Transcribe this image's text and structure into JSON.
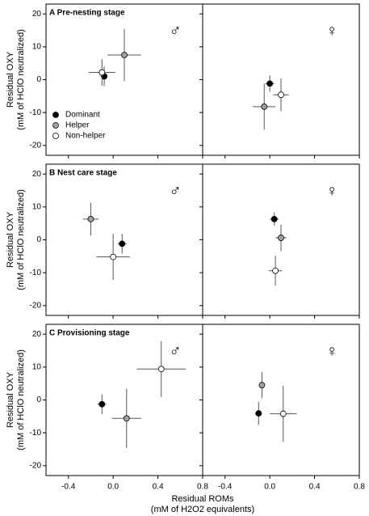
{
  "chart_data": [
    {
      "type": "scatter",
      "title": "A Pre-nesting stage",
      "annotation": "♂",
      "ylabel": [
        "Residual OXY",
        "(mM of HClO neutralized)"
      ],
      "xlim": [
        -0.6,
        0.8
      ],
      "ylim": [
        -23,
        23
      ],
      "xticks": [
        -0.4,
        {
          "value": 0,
          "label": "0.0"
        },
        0.4,
        0.8
      ],
      "yticks": [
        -20,
        -10,
        0,
        10,
        20
      ],
      "series": [
        {
          "name": "Dominant",
          "color": "#000000",
          "x": [
            -0.08
          ],
          "values": [
            1
          ],
          "xerr": [
            0.03
          ],
          "yerr": [
            3
          ]
        },
        {
          "name": "Helper",
          "color": "#a0a0a0",
          "x": [
            0.1
          ],
          "values": [
            7.5
          ],
          "xerr": [
            0.15
          ],
          "yerr": [
            8
          ]
        },
        {
          "name": "Non-helper",
          "color": "#ffffff",
          "x": [
            -0.1
          ],
          "values": [
            2.2
          ],
          "xerr": [
            0.12
          ],
          "yerr": [
            4
          ]
        }
      ]
    },
    {
      "type": "scatter",
      "annotation": "♀",
      "xlim": [
        -0.6,
        0.8
      ],
      "ylim": [
        -23,
        23
      ],
      "xticks": [
        -0.4,
        {
          "value": 0,
          "label": "0.0"
        },
        0.4,
        0.8
      ],
      "yticks": [
        -20,
        -10,
        0,
        10,
        20
      ],
      "series": [
        {
          "color": "#000000",
          "x": [
            0.0
          ],
          "values": [
            -1.2
          ],
          "xerr": [
            0.04
          ],
          "yerr": [
            2.5
          ]
        },
        {
          "color": "#a0a0a0",
          "x": [
            -0.05
          ],
          "values": [
            -8.2
          ],
          "xerr": [
            0.1
          ],
          "yerr": [
            7
          ]
        },
        {
          "color": "#ffffff",
          "x": [
            0.1
          ],
          "values": [
            -4.6
          ],
          "xerr": [
            0.07
          ],
          "yerr": [
            5
          ]
        }
      ]
    },
    {
      "type": "scatter",
      "title": "B Nest care stage",
      "annotation": "♂",
      "ylabel": [
        "Residual OXY",
        "(mM of HClO neutralized)"
      ],
      "xlim": [
        -0.6,
        0.8
      ],
      "ylim": [
        -23,
        23
      ],
      "xticks": [
        -0.4,
        {
          "value": 0,
          "label": "0.0"
        },
        0.4,
        0.8
      ],
      "yticks": [
        -20,
        -10,
        0,
        10,
        20
      ],
      "series": [
        {
          "color": "#000000",
          "x": [
            0.08
          ],
          "values": [
            -1.2
          ],
          "xerr": [
            0.04
          ],
          "yerr": [
            3
          ]
        },
        {
          "color": "#a0a0a0",
          "x": [
            -0.2
          ],
          "values": [
            6.3
          ],
          "xerr": [
            0.07
          ],
          "yerr": [
            5
          ]
        },
        {
          "color": "#ffffff",
          "x": [
            0.0
          ],
          "values": [
            -5.2
          ],
          "xerr": [
            0.15
          ],
          "yerr": [
            7
          ]
        }
      ]
    },
    {
      "type": "scatter",
      "annotation": "♀",
      "xlim": [
        -0.6,
        0.8
      ],
      "ylim": [
        -23,
        23
      ],
      "xticks": [
        -0.4,
        {
          "value": 0,
          "label": "0.0"
        },
        0.4,
        0.8
      ],
      "yticks": [
        -20,
        -10,
        0,
        10,
        20
      ],
      "series": [
        {
          "color": "#000000",
          "x": [
            0.04
          ],
          "values": [
            6.3
          ],
          "xerr": [
            0.04
          ],
          "yerr": [
            2
          ]
        },
        {
          "color": "#a0a0a0",
          "x": [
            0.1
          ],
          "values": [
            0.6
          ],
          "xerr": [
            0.05
          ],
          "yerr": [
            4
          ]
        },
        {
          "color": "#ffffff",
          "x": [
            0.05
          ],
          "values": [
            -9.4
          ],
          "xerr": [
            0.06
          ],
          "yerr": [
            4.5
          ]
        }
      ]
    },
    {
      "type": "scatter",
      "title": "C Provisioning stage",
      "annotation": "♂",
      "ylabel": [
        "Residual OXY",
        "(mM of HClO neutralized)"
      ],
      "xlabel": [
        "Residual ROMs",
        "(mM of H2O2 equivalents)"
      ],
      "xlim": [
        -0.6,
        0.8
      ],
      "ylim": [
        -23,
        23
      ],
      "xticks": [
        -0.4,
        {
          "value": 0,
          "label": "0.0"
        },
        0.4,
        0.8
      ],
      "yticks": [
        -20,
        -10,
        0,
        10,
        20
      ],
      "series": [
        {
          "color": "#000000",
          "x": [
            -0.1
          ],
          "values": [
            -1.3
          ],
          "xerr": [
            0.04
          ],
          "yerr": [
            3
          ]
        },
        {
          "color": "#a0a0a0",
          "x": [
            0.12
          ],
          "values": [
            -5.6
          ],
          "xerr": [
            0.13
          ],
          "yerr": [
            9
          ]
        },
        {
          "color": "#ffffff",
          "x": [
            0.43
          ],
          "values": [
            9.4
          ],
          "xerr": [
            0.22
          ],
          "yerr": [
            8.5
          ]
        }
      ]
    },
    {
      "type": "scatter",
      "annotation": "♀",
      "xlim": [
        -0.6,
        0.8
      ],
      "ylim": [
        -23,
        23
      ],
      "xticks": [
        -0.4,
        {
          "value": 0,
          "label": "0.0"
        },
        0.4,
        0.8
      ],
      "yticks": [
        -20,
        -10,
        0,
        10,
        20
      ],
      "series": [
        {
          "color": "#000000",
          "x": [
            -0.1
          ],
          "values": [
            -4.1
          ],
          "xerr": [
            0.03
          ],
          "yerr": [
            3.5
          ]
        },
        {
          "color": "#a0a0a0",
          "x": [
            -0.07
          ],
          "values": [
            4.5
          ],
          "xerr": [
            0.02
          ],
          "yerr": [
            4
          ]
        },
        {
          "color": "#ffffff",
          "x": [
            0.12
          ],
          "values": [
            -4.2
          ],
          "xerr": [
            0.12
          ],
          "yerr": [
            8.5
          ]
        }
      ]
    }
  ]
}
